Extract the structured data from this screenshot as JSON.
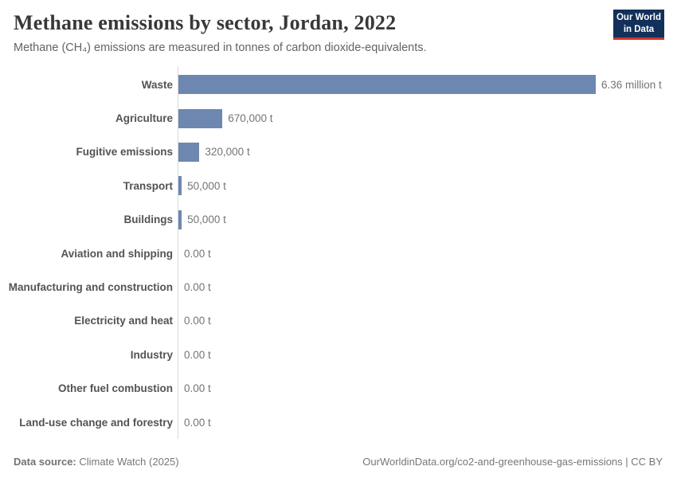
{
  "header": {
    "title": "Methane emissions by sector, Jordan, 2022",
    "subtitle": "Methane (CH₄) emissions are measured in tonnes of carbon dioxide-equivalents.",
    "logo": {
      "line1": "Our World",
      "line2": "in Data",
      "bg_color": "#12305a",
      "accent_color": "#d0342c"
    }
  },
  "chart_data": {
    "type": "bar",
    "orientation": "horizontal",
    "title": "Methane emissions by sector, Jordan, 2022",
    "subtitle": "Methane (CH₄) emissions are measured in tonnes of carbon dioxide-equivalents.",
    "unit": "tonnes of carbon dioxide-equivalents",
    "year": "2022",
    "entity": "Jordan",
    "categories": [
      "Waste",
      "Agriculture",
      "Fugitive emissions",
      "Transport",
      "Buildings",
      "Aviation and shipping",
      "Manufacturing and construction",
      "Electricity and heat",
      "Industry",
      "Other fuel combustion",
      "Land-use change and forestry"
    ],
    "values": [
      6360000,
      670000,
      320000,
      50000,
      50000,
      0,
      0,
      0,
      0,
      0,
      0
    ],
    "value_labels": [
      "6.36 million t",
      "670,000 t",
      "320,000 t",
      "50,000 t",
      "50,000 t",
      "0.00 t",
      "0.00 t",
      "0.00 t",
      "0.00 t",
      "0.00 t",
      "0.00 t"
    ],
    "xlim": [
      0,
      6360000
    ],
    "bar_color": "#6d87b0",
    "grid": false,
    "legend": "none"
  },
  "footer": {
    "source_label": "Data source:",
    "source_value": " Climate Watch (2025)",
    "credit": "OurWorldinData.org/co2-and-greenhouse-gas-emissions | CC BY"
  }
}
